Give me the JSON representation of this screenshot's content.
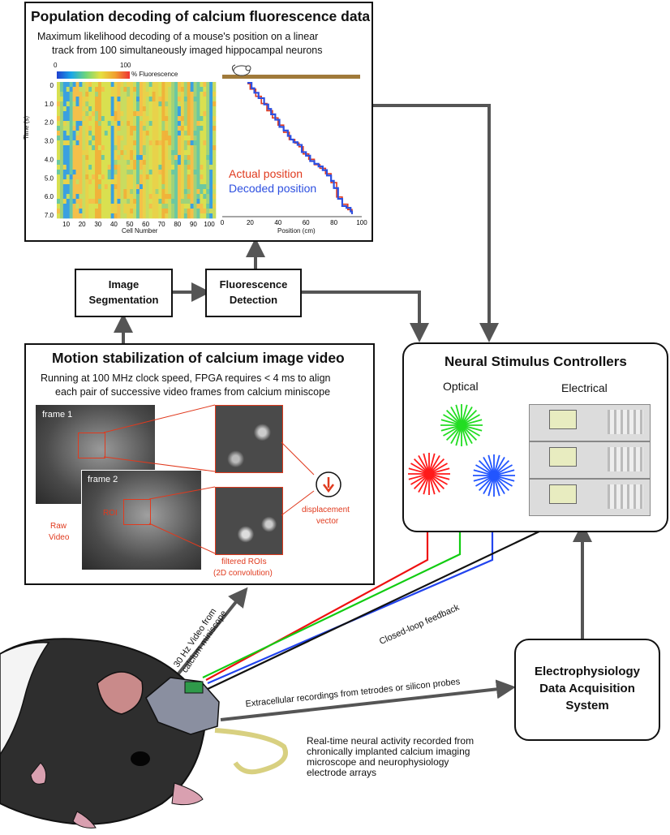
{
  "decoding": {
    "title": "Population decoding of calcium fluorescence data",
    "subtitle_1": "Maximum likelihood decoding of a mouse's position on a linear",
    "subtitle_2": "track from 100 simultaneously imaged hippocampal neurons",
    "colorbar_min": "0",
    "colorbar_max": "100",
    "colorbar_label": "% Fluorescence",
    "heatmap_ylabel": "Time (s)",
    "heatmap_xlabel": "Cell Number",
    "trace_xlabel": "Position (cm)",
    "legend_actual": "Actual position",
    "legend_decoded": "Decoded position"
  },
  "segmentation": {
    "line1": "Image",
    "line2": "Segmentation"
  },
  "detection": {
    "line1": "Fluorescence",
    "line2": "Detection"
  },
  "motion": {
    "title": "Motion stabilization of calcium image video",
    "subtitle_1": "Running at 100 MHz clock speed, FPGA requires < 4 ms to align",
    "subtitle_2": "each pair of successive video frames from calcium miniscope",
    "frame1": "frame 1",
    "frame2": "frame 2",
    "roi": "ROI",
    "raw_1": "Raw",
    "raw_2": "Video",
    "filtered_1": "filtered ROIs",
    "filtered_2": "(2D convolution)",
    "disp_1": "displacement",
    "disp_2": "vector"
  },
  "controllers": {
    "title": "Neural Stimulus Controllers",
    "optical": "Optical",
    "electrical": "Electrical"
  },
  "ephys": {
    "line1": "Electrophysiology",
    "line2": "Data Acquisition",
    "line3": "System"
  },
  "annotations": {
    "video_1": "30 Hz Video from",
    "video_2": "calcium miniscope",
    "feedback": "Closed-loop feedback",
    "recordings": "Extracellular recordings from tetrodes or silicon probes",
    "realtime_1": "Real-time neural activity recorded from",
    "realtime_2": "chronically implanted calcium imaging",
    "realtime_3": "microscope and neurophysiology",
    "realtime_4": "electrode arrays"
  },
  "colors": {
    "actual": "#e03a1e",
    "decoded": "#2d4fe0",
    "annotation_red": "#e03a1e",
    "laser_red": "#ff1a1a",
    "laser_green": "#22dd22",
    "laser_blue": "#2255ff"
  },
  "chart_data": [
    {
      "type": "heatmap",
      "ylabel": "Time (s)",
      "xlabel": "Cell Number",
      "y_ticks": [
        "0",
        "1.0",
        "2.0",
        "3.0",
        "4.0",
        "5.0",
        "6.0",
        "7.0"
      ],
      "x_ticks": [
        "10",
        "20",
        "30",
        "40",
        "50",
        "60",
        "70",
        "80",
        "90",
        "100"
      ],
      "colorbar": {
        "min": 0,
        "max": 100,
        "label": "% Fluorescence"
      }
    },
    {
      "type": "line",
      "xlabel": "Position (cm)",
      "x_ticks": [
        "0",
        "20",
        "40",
        "60",
        "80",
        "100"
      ],
      "xlim": [
        0,
        100
      ],
      "ylim": [
        0,
        7.4
      ],
      "series": [
        {
          "name": "Actual position",
          "x": [
            18,
            20,
            24,
            28,
            32,
            36,
            40,
            44,
            48,
            52,
            55,
            58,
            62,
            66,
            70,
            74,
            78,
            82,
            86,
            90,
            93
          ],
          "t": [
            0.1,
            0.4,
            0.8,
            1.2,
            1.6,
            2.0,
            2.4,
            2.8,
            3.2,
            3.4,
            3.6,
            4.0,
            4.3,
            4.6,
            4.8,
            5.1,
            5.6,
            6.4,
            6.8,
            7.1,
            7.35
          ]
        },
        {
          "name": "Decoded position",
          "x": [
            18,
            21,
            23,
            26,
            30,
            33,
            35,
            38,
            41,
            44,
            47,
            49,
            51,
            54,
            57,
            60,
            63,
            66,
            69,
            72,
            75,
            78,
            80,
            83,
            86,
            89,
            92,
            93
          ],
          "t": [
            0.05,
            0.35,
            0.6,
            0.9,
            1.25,
            1.5,
            1.8,
            2.1,
            2.5,
            2.7,
            3.0,
            3.2,
            3.35,
            3.5,
            3.9,
            4.1,
            4.4,
            4.55,
            4.7,
            4.9,
            5.2,
            5.5,
            5.9,
            6.5,
            6.9,
            7.0,
            7.2,
            7.35
          ]
        }
      ]
    }
  ]
}
